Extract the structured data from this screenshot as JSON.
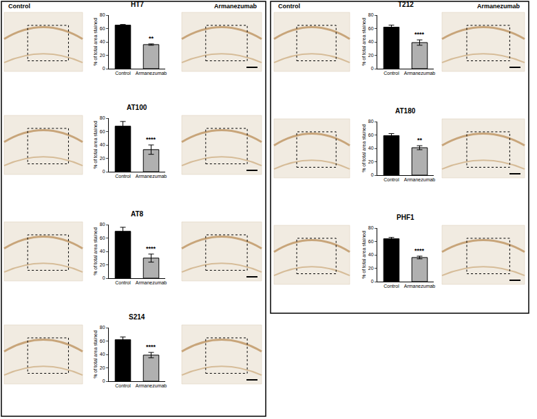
{
  "image_labels": [
    "Control",
    "Armanezumab"
  ],
  "chart_data": [
    {
      "type": "bar",
      "title": "HT7",
      "categories": [
        "Control",
        "Armanezumab"
      ],
      "values": [
        65,
        36
      ],
      "errors": [
        1,
        1
      ],
      "colors": [
        "#000000",
        "#b0b0b0"
      ],
      "ylabel": "% of total area stained",
      "ylim": [
        0,
        80
      ],
      "yticks": [
        0,
        20,
        40,
        60,
        80
      ],
      "annotation": "**"
    },
    {
      "type": "bar",
      "title": "AT100",
      "categories": [
        "Control",
        "Armanezumab"
      ],
      "values": [
        68,
        33
      ],
      "errors": [
        7,
        7
      ],
      "colors": [
        "#000000",
        "#b0b0b0"
      ],
      "ylabel": "% of total area stained",
      "ylim": [
        0,
        80
      ],
      "yticks": [
        0,
        20,
        40,
        60,
        80
      ],
      "annotation": "****"
    },
    {
      "type": "bar",
      "title": "AT8",
      "categories": [
        "Control",
        "Armanezumab"
      ],
      "values": [
        70,
        30
      ],
      "errors": [
        6,
        6
      ],
      "colors": [
        "#000000",
        "#b0b0b0"
      ],
      "ylabel": "% of total area stained",
      "ylim": [
        0,
        80
      ],
      "yticks": [
        0,
        20,
        40,
        60,
        80
      ],
      "annotation": "****"
    },
    {
      "type": "bar",
      "title": "S214",
      "categories": [
        "Control",
        "Armanezumab"
      ],
      "values": [
        62,
        39
      ],
      "errors": [
        4,
        4
      ],
      "colors": [
        "#000000",
        "#b0b0b0"
      ],
      "ylabel": "% of total area stained",
      "ylim": [
        0,
        80
      ],
      "yticks": [
        0,
        20,
        40,
        60,
        80
      ],
      "annotation": "****"
    },
    {
      "type": "bar",
      "title": "T212",
      "categories": [
        "Control",
        "Armanezumab"
      ],
      "values": [
        62,
        39
      ],
      "errors": [
        3,
        4
      ],
      "colors": [
        "#000000",
        "#b0b0b0"
      ],
      "ylabel": "% of total area stained",
      "ylim": [
        0,
        80
      ],
      "yticks": [
        0,
        20,
        40,
        60,
        80
      ],
      "annotation": "****"
    },
    {
      "type": "bar",
      "title": "AT180",
      "categories": [
        "Control",
        "Armanezumab"
      ],
      "values": [
        59,
        41
      ],
      "errors": [
        3,
        3
      ],
      "colors": [
        "#000000",
        "#b0b0b0"
      ],
      "ylabel": "% of total area stained",
      "ylim": [
        0,
        80
      ],
      "yticks": [
        0,
        20,
        40,
        60,
        80
      ],
      "annotation": "**"
    },
    {
      "type": "bar",
      "title": "PHF1",
      "categories": [
        "Control",
        "Armanezumab"
      ],
      "values": [
        64,
        36
      ],
      "errors": [
        2,
        2
      ],
      "colors": [
        "#000000",
        "#b0b0b0"
      ],
      "ylabel": "% of total area stained",
      "ylim": [
        0,
        80
      ],
      "yticks": [
        0,
        20,
        40,
        60,
        80
      ],
      "annotation": "****"
    }
  ]
}
